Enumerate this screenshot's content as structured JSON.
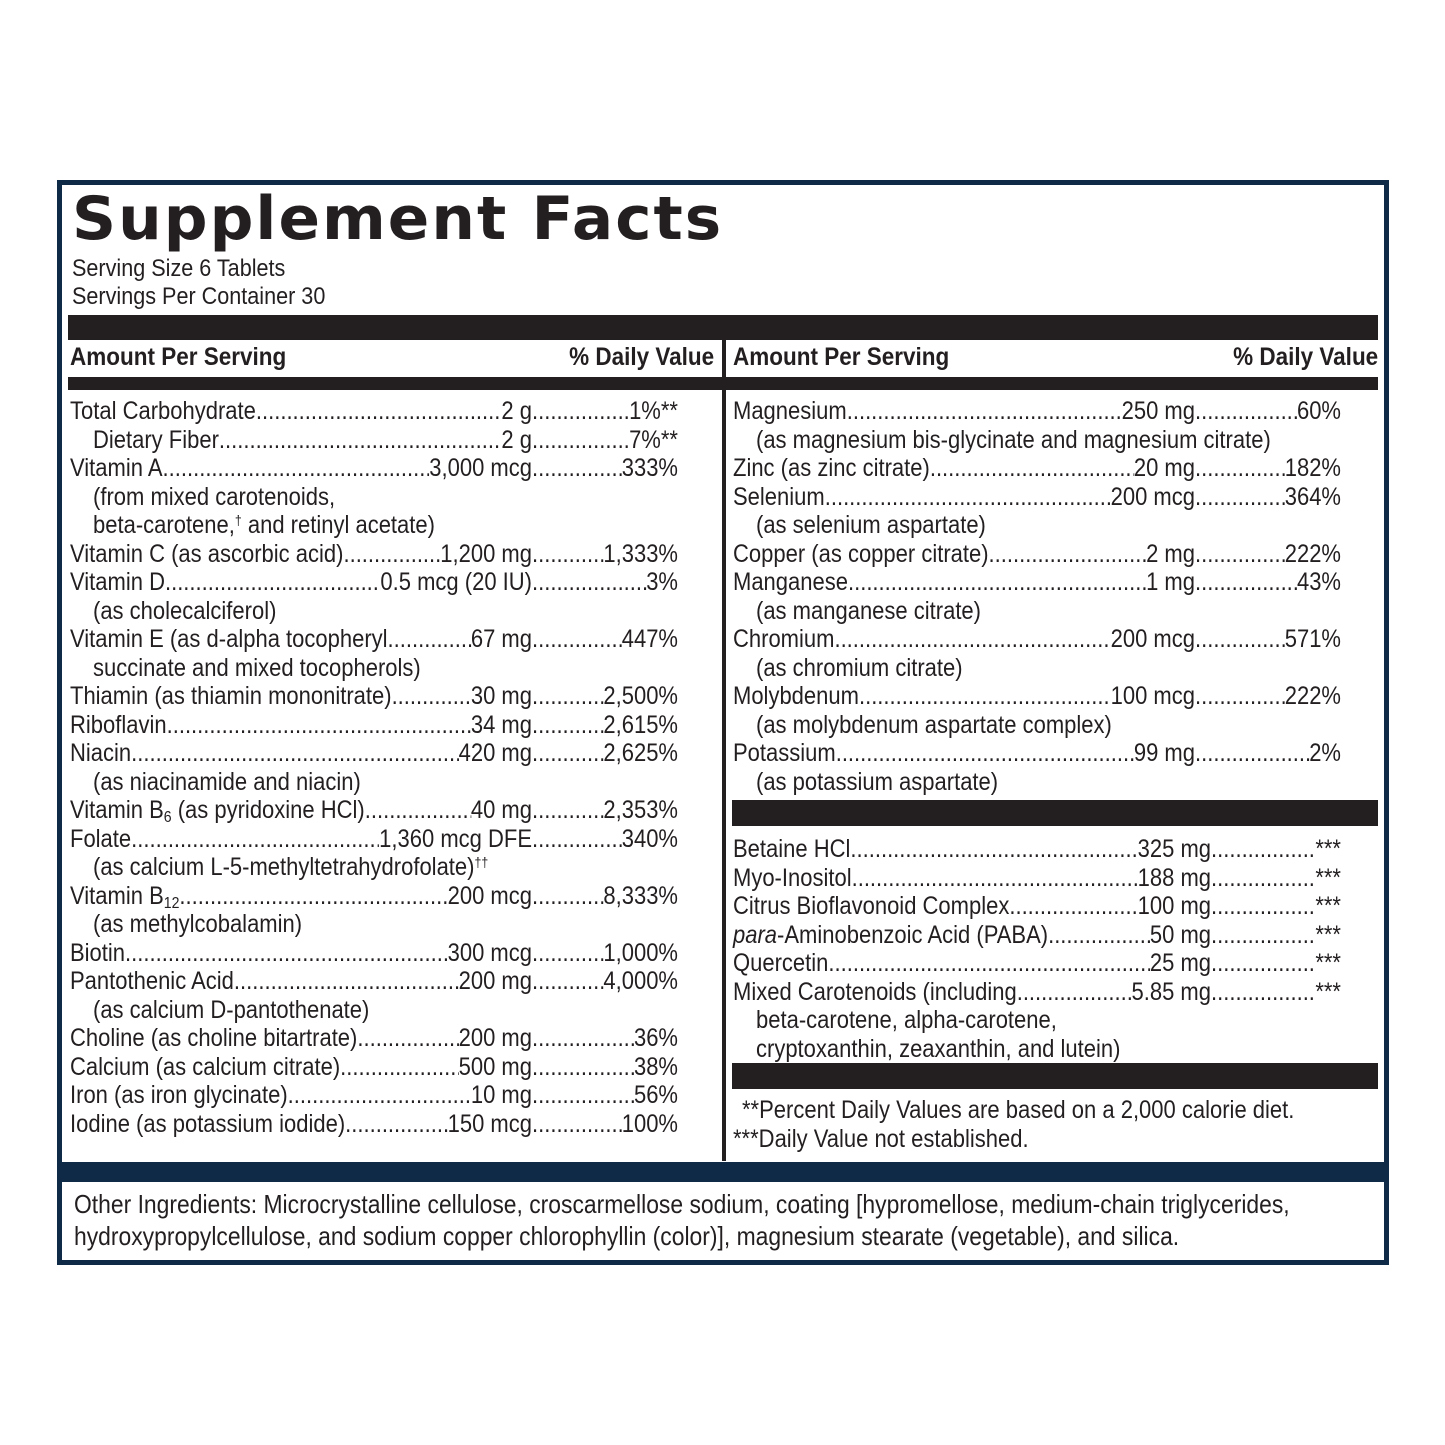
{
  "title": "Supplement Facts",
  "serving_size": "Serving Size 6 Tablets",
  "servings_per_container": "Servings Per Container 30",
  "header": {
    "amount_per_serving": "Amount Per Serving",
    "daily_value": "% Daily Value"
  },
  "left_column": {
    "rows": [
      {
        "name": "Total Carbohydrate ",
        "amount": "2 g",
        "dv": "1%**"
      },
      {
        "name": "Dietary Fiber",
        "amount": "2 g",
        "dv": "7%**"
      },
      {
        "name": "Vitamin A",
        "amount": "3,000 mcg",
        "dv": "333%",
        "sub": [
          "(from mixed carotenoids,",
          "beta-carotene,",
          "and retinyl acetate)"
        ]
      },
      {
        "name": "Vitamin C (as ascorbic acid)",
        "amount": "1,200 mg",
        "dv": "1,333%"
      },
      {
        "name": "Vitamin D ",
        "amount": "0.5 mcg (20 IU)",
        "dv": "3%",
        "sub": [
          "(as cholecalciferol)"
        ]
      },
      {
        "name": "Vitamin E (as d-alpha tocopheryl ",
        "amount": "67 mg",
        "dv": "447%",
        "sub": [
          "succinate and mixed tocopherols)"
        ]
      },
      {
        "name": "Thiamin (as thiamin mononitrate) ",
        "amount": "30 mg",
        "dv": "2,500%"
      },
      {
        "name": "Riboflavin",
        "amount": "34 mg",
        "dv": "2,615%"
      },
      {
        "name": "Niacin ",
        "amount": "420 mg",
        "dv": "2,625%",
        "sub": [
          "(as niacinamide and niacin)"
        ]
      },
      {
        "name": "Vitamin B",
        "name_sub": "6",
        "name_after": " (as pyridoxine HCl)",
        "amount": "40 mg",
        "dv": "2,353%"
      },
      {
        "name": "Folate ",
        "amount": "1,360 mcg DFE",
        "dv": "340%",
        "sub": [
          "(as calcium L-5-methyltetrahydrofolate)"
        ]
      },
      {
        "name": "Vitamin B",
        "name_sub": "12",
        "amount": "200 mcg",
        "dv": "8,333%",
        "sub": [
          "(as methylcobalamin)"
        ]
      },
      {
        "name": "Biotin",
        "amount": "300 mcg",
        "dv": "1,000%"
      },
      {
        "name": "Pantothenic Acid ",
        "amount": "200 mg",
        "dv": "4,000%",
        "sub": [
          "(as calcium D-pantothenate)"
        ]
      },
      {
        "name": "Choline (as choline bitartrate) ",
        "amount": "200 mg",
        "dv": "36%"
      },
      {
        "name": "Calcium (as calcium citrate)",
        "amount": "500 mg",
        "dv": "38%"
      },
      {
        "name": "Iron (as iron glycinate) ",
        "amount": "10 mg",
        "dv": "56%"
      },
      {
        "name": "Iodine (as potassium iodide) ",
        "amount": "150 mcg",
        "dv": "100%"
      }
    ],
    "markers": {
      "dagger": "†",
      "double_dagger": "††"
    }
  },
  "right_column": {
    "rows": [
      {
        "name": "Magnesium",
        "amount": "250 mg",
        "dv": "60%",
        "sub": [
          "(as magnesium bis-glycinate and magnesium citrate)"
        ]
      },
      {
        "name": "Zinc (as zinc citrate) ",
        "amount": "20 mg",
        "dv": "182%"
      },
      {
        "name": "Selenium ",
        "amount": "200 mcg",
        "dv": "364%",
        "sub": [
          "(as selenium aspartate)"
        ]
      },
      {
        "name": "Copper (as copper citrate)",
        "amount": "2 mg",
        "dv": "222%"
      },
      {
        "name": "Manganese",
        "amount": "1 mg",
        "dv": "43%",
        "sub": [
          "(as manganese citrate)"
        ]
      },
      {
        "name": "Chromium",
        "amount": "200 mcg",
        "dv": "571%",
        "sub": [
          "(as chromium citrate)"
        ]
      },
      {
        "name": "Molybdenum",
        "amount": "100 mcg",
        "dv": "222%",
        "sub": [
          "(as molybdenum aspartate complex)"
        ]
      },
      {
        "name": "Potassium",
        "amount": "99 mg",
        "dv": "2%",
        "sub": [
          "(as potassium aspartate)"
        ]
      }
    ],
    "other_rows": [
      {
        "name": "Betaine HCl",
        "amount": "325 mg",
        "dv": "***"
      },
      {
        "name": "Myo-Inositol",
        "amount": "188 mg",
        "dv": "***"
      },
      {
        "name": "Citrus Bioflavonoid Complex ",
        "amount": "100 mg",
        "dv": "***"
      },
      {
        "name_italic": "para",
        "name": "-Aminobenzoic Acid (PABA)",
        "amount": "50 mg",
        "dv": "***"
      },
      {
        "name": "Quercetin",
        "amount": "25 mg",
        "dv": "***"
      },
      {
        "name": "Mixed Carotenoids (including",
        "amount": "5.85 mg",
        "dv": "***",
        "sub": [
          "beta-carotene, alpha-carotene,",
          "cryptoxanthin, zeaxanthin, and lutein)"
        ]
      }
    ],
    "footnotes": [
      " **Percent Daily Values are based on a 2,000 calorie diet.",
      "***Daily Value not established."
    ]
  },
  "other_ingredients": [
    "Other Ingredients: Microcrystalline cellulose, croscarmellose sodium, coating [hypromellose, medium-chain triglycerides,",
    "hydroxypropylcellulose, and sodium copper chlorophyllin (color)], magnesium stearate (vegetable), and silica."
  ],
  "colors": {
    "text": "#231f20",
    "frame": "#0e2a47"
  }
}
